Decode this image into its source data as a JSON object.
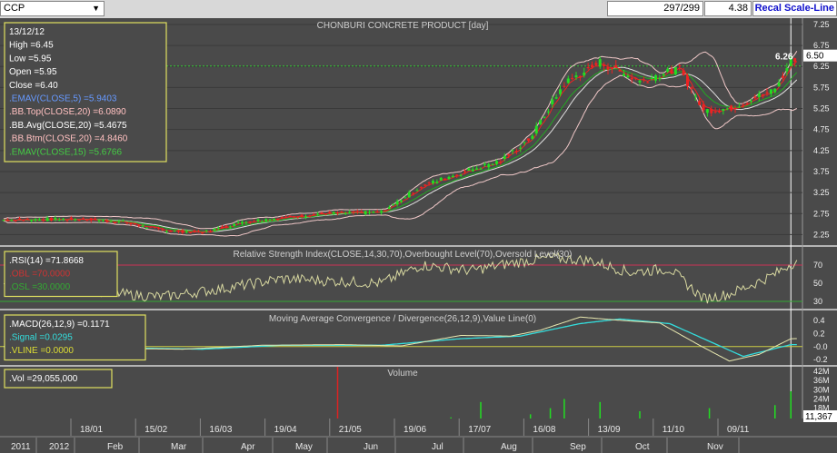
{
  "toolbar": {
    "symbol": "CCP",
    "counter": "297/299",
    "scale_value": "4.38",
    "recal_label": "Recal Scale-Line"
  },
  "colors": {
    "background": "#4a4a4a",
    "grid": "#3a3a3a",
    "candle_up": "#22dd22",
    "candle_down": "#ee2222",
    "bb_band": "#f0c8c8",
    "ema5": "#ee2222",
    "ema15": "#22aa22",
    "rsi": "#d8d8a0",
    "macd": "#e8e8b0",
    "signal": "#33dddd",
    "volume": "#22dd22",
    "vline": "#ffffff",
    "info_border": "#e0e060"
  },
  "price_panel": {
    "title": "CHONBURI CONCRETE PRODUCT [day]",
    "info": [
      {
        "label": "13/12/12",
        "color": "#ffffff"
      },
      {
        "label": "High  =6.45",
        "color": "#ffffff"
      },
      {
        "label": "Low   =5.95",
        "color": "#ffffff"
      },
      {
        "label": "Open  =5.95",
        "color": "#ffffff"
      },
      {
        "label": "Close  =6.40",
        "color": "#ffffff"
      },
      {
        "label": ".EMAV(CLOSE,5)   =5.9403",
        "color": "#6699ff"
      },
      {
        "label": ".BB.Top(CLOSE,20)   =6.0890",
        "color": "#ffc0c0"
      },
      {
        "label": ".BB.Avg(CLOSE,20)   =5.4675",
        "color": "#ffffff"
      },
      {
        "label": ".BB.Btm(CLOSE,20)   =4.8460",
        "color": "#ffc0c0"
      },
      {
        "label": ".EMAV(CLOSE,15)   =5.6766",
        "color": "#44cc44"
      }
    ],
    "last_price_label": "6.26",
    "current_price_tag": "6.50"
  },
  "rsi_panel": {
    "title": "Relative Strength Index(CLOSE,14,30,70),Overbought Level(70),Oversold Level(30)",
    "info": [
      {
        "label": ".RSI(14)   =71.8668",
        "color": "#ffffff"
      },
      {
        "label": ".OBL   =70.0000",
        "color": "#cc3333"
      },
      {
        "label": ".OSL   =30.0000",
        "color": "#33aa33"
      }
    ]
  },
  "macd_panel": {
    "title": "Moving Average Convergence / Divergence(26,12,9),Value Line(0)",
    "info": [
      {
        "label": ".MACD(26,12,9)   =0.1171",
        "color": "#ffffff"
      },
      {
        "label": ".Signal   =0.0295",
        "color": "#33dddd"
      },
      {
        "label": ".VLINE   =0.0000",
        "color": "#dddd33"
      }
    ]
  },
  "volume_panel": {
    "title": "Volume",
    "info": [
      {
        "label": ".Vol   =29,055,000",
        "color": "#ffffff"
      }
    ],
    "current_tag": "11,367"
  },
  "chart_data": {
    "type": "candlestick",
    "price_axis": {
      "ylim": [
        2.0,
        7.4
      ],
      "ticks": [
        "7.25",
        "6.75",
        "6.25",
        "5.75",
        "5.25",
        "4.75",
        "4.25",
        "3.75",
        "3.25",
        "2.75",
        "2.25"
      ]
    },
    "rsi_axis": {
      "ylim": [
        22,
        90
      ],
      "ticks": [
        "70",
        "50",
        "30"
      ]
    },
    "macd_axis": {
      "ylim": [
        -0.28,
        0.55
      ],
      "ticks": [
        "0.4",
        "0.2",
        "-0.0",
        "-0.2"
      ]
    },
    "volume_axis": {
      "ylim": [
        0,
        45
      ],
      "ticks": [
        "42M",
        "36M",
        "30M",
        "24M",
        "18M",
        "12M"
      ]
    },
    "date_labels": [
      "18/01",
      "15/02",
      "16/03",
      "19/04",
      "21/05",
      "19/06",
      "17/07",
      "16/08",
      "13/09",
      "11/10",
      "09/11"
    ],
    "month_labels": [
      "2011",
      "2012",
      "Feb",
      "Mar",
      "Apr",
      "May",
      "Jun",
      "Jul",
      "Aug",
      "Sep",
      "Oct",
      "Nov"
    ],
    "close_series": [
      {
        "i": 0,
        "close": 2.6
      },
      {
        "i": 40,
        "close": 2.62
      },
      {
        "i": 60,
        "close": 2.55
      },
      {
        "i": 80,
        "close": 2.35
      },
      {
        "i": 100,
        "close": 2.3
      },
      {
        "i": 120,
        "close": 2.55
      },
      {
        "i": 140,
        "close": 2.65
      },
      {
        "i": 160,
        "close": 2.75
      },
      {
        "i": 190,
        "close": 2.78
      },
      {
        "i": 210,
        "close": 3.4
      },
      {
        "i": 235,
        "close": 3.8
      },
      {
        "i": 250,
        "close": 4.0
      },
      {
        "i": 265,
        "close": 4.55
      },
      {
        "i": 282,
        "close": 5.85
      },
      {
        "i": 300,
        "close": 6.35
      },
      {
        "i": 320,
        "close": 5.9
      },
      {
        "i": 340,
        "close": 6.2
      },
      {
        "i": 352,
        "close": 5.2
      },
      {
        "i": 365,
        "close": 5.25
      },
      {
        "i": 378,
        "close": 5.5
      },
      {
        "i": 388,
        "close": 5.7
      },
      {
        "i": 396,
        "close": 6.4
      }
    ],
    "rsi_series": [
      {
        "i": 0,
        "v": 45
      },
      {
        "i": 30,
        "v": 48
      },
      {
        "i": 60,
        "v": 38
      },
      {
        "i": 80,
        "v": 35
      },
      {
        "i": 110,
        "v": 44
      },
      {
        "i": 140,
        "v": 55
      },
      {
        "i": 170,
        "v": 52
      },
      {
        "i": 190,
        "v": 50
      },
      {
        "i": 210,
        "v": 70
      },
      {
        "i": 235,
        "v": 64
      },
      {
        "i": 255,
        "v": 72
      },
      {
        "i": 275,
        "v": 78
      },
      {
        "i": 295,
        "v": 75
      },
      {
        "i": 315,
        "v": 62
      },
      {
        "i": 335,
        "v": 66
      },
      {
        "i": 352,
        "v": 33
      },
      {
        "i": 365,
        "v": 38
      },
      {
        "i": 378,
        "v": 50
      },
      {
        "i": 388,
        "v": 60
      },
      {
        "i": 396,
        "v": 71.87
      }
    ],
    "macd_series": [
      {
        "i": 0,
        "v": 0.0
      },
      {
        "i": 60,
        "v": -0.03
      },
      {
        "i": 90,
        "v": -0.04
      },
      {
        "i": 130,
        "v": 0.02
      },
      {
        "i": 170,
        "v": 0.03
      },
      {
        "i": 200,
        "v": 0.01
      },
      {
        "i": 230,
        "v": 0.17
      },
      {
        "i": 255,
        "v": 0.16
      },
      {
        "i": 270,
        "v": 0.25
      },
      {
        "i": 290,
        "v": 0.45
      },
      {
        "i": 310,
        "v": 0.4
      },
      {
        "i": 330,
        "v": 0.36
      },
      {
        "i": 350,
        "v": 0.02
      },
      {
        "i": 365,
        "v": -0.22
      },
      {
        "i": 380,
        "v": -0.12
      },
      {
        "i": 396,
        "v": 0.12
      }
    ],
    "signal_series": [
      {
        "i": 0,
        "v": 0.0
      },
      {
        "i": 60,
        "v": -0.02
      },
      {
        "i": 100,
        "v": -0.04
      },
      {
        "i": 140,
        "v": 0.02
      },
      {
        "i": 190,
        "v": 0.02
      },
      {
        "i": 230,
        "v": 0.12
      },
      {
        "i": 260,
        "v": 0.16
      },
      {
        "i": 290,
        "v": 0.35
      },
      {
        "i": 310,
        "v": 0.42
      },
      {
        "i": 335,
        "v": 0.35
      },
      {
        "i": 355,
        "v": 0.08
      },
      {
        "i": 372,
        "v": -0.15
      },
      {
        "i": 396,
        "v": 0.03
      }
    ],
    "volume_spikes": [
      {
        "i": 20,
        "v": 3
      },
      {
        "i": 48,
        "v": 4
      },
      {
        "i": 75,
        "v": 2
      },
      {
        "i": 110,
        "v": 5
      },
      {
        "i": 140,
        "v": 8
      },
      {
        "i": 168,
        "v": 45
      },
      {
        "i": 190,
        "v": 6
      },
      {
        "i": 205,
        "v": 10
      },
      {
        "i": 225,
        "v": 12
      },
      {
        "i": 240,
        "v": 22
      },
      {
        "i": 255,
        "v": 9
      },
      {
        "i": 265,
        "v": 14
      },
      {
        "i": 275,
        "v": 18
      },
      {
        "i": 282,
        "v": 24
      },
      {
        "i": 300,
        "v": 22
      },
      {
        "i": 320,
        "v": 16
      },
      {
        "i": 345,
        "v": 9
      },
      {
        "i": 355,
        "v": 18
      },
      {
        "i": 362,
        "v": 10
      },
      {
        "i": 378,
        "v": 8
      },
      {
        "i": 388,
        "v": 20
      },
      {
        "i": 396,
        "v": 29
      }
    ],
    "legend": "top-left"
  }
}
